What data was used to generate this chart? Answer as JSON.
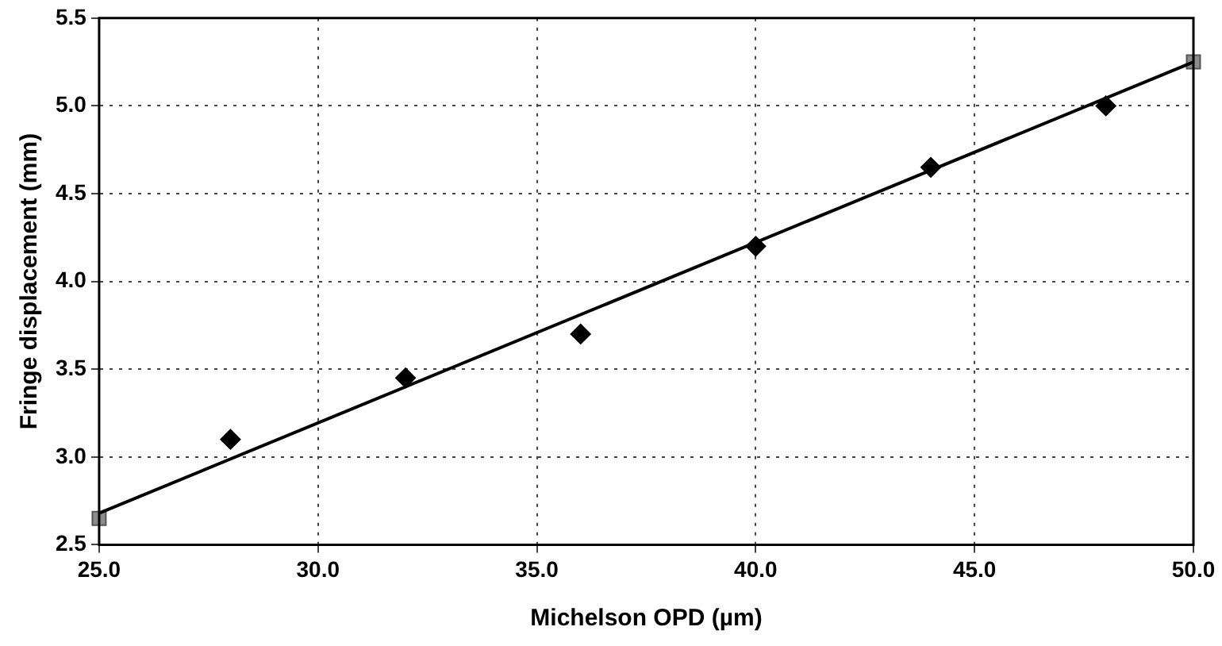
{
  "chart_data": {
    "type": "scatter",
    "xlabel": "Michelson OPD (µm)",
    "ylabel": "Fringe displacement (mm)",
    "xlim": [
      25,
      50
    ],
    "xticks": [
      {
        "value": 25,
        "label": "25.0"
      },
      {
        "value": 30,
        "label": "30.0"
      },
      {
        "value": 35,
        "label": "35.0"
      },
      {
        "value": 40,
        "label": "40.0"
      },
      {
        "value": 45,
        "label": "45.0"
      },
      {
        "value": 50,
        "label": "50.0"
      }
    ],
    "ylim": [
      2.5,
      5.5
    ],
    "yticks": [
      {
        "value": 2.5,
        "label": "2.5"
      },
      {
        "value": 3,
        "label": "3.0"
      },
      {
        "value": 3.5,
        "label": "3.5"
      },
      {
        "value": 4,
        "label": "4.0"
      },
      {
        "value": 4.5,
        "label": "4.5"
      },
      {
        "value": 5,
        "label": "5.0"
      },
      {
        "value": 5.5,
        "label": "5.5"
      }
    ],
    "grid": true,
    "legend": false,
    "series": [
      {
        "type": "line",
        "color": "#000000",
        "marker": "none",
        "line_style": "solid",
        "x": [
          25,
          50
        ],
        "values": [
          2.68,
          5.25
        ]
      },
      {
        "color": "#000000",
        "marker": "diamond",
        "x": [
          28,
          32,
          36,
          40,
          44,
          48
        ],
        "values": [
          3.1,
          3.45,
          3.7,
          4.2,
          4.65,
          5.0
        ]
      },
      {
        "color": "#8c8c8c",
        "marker": "square",
        "x": [
          25,
          50
        ],
        "values": [
          2.65,
          5.25
        ]
      }
    ]
  }
}
